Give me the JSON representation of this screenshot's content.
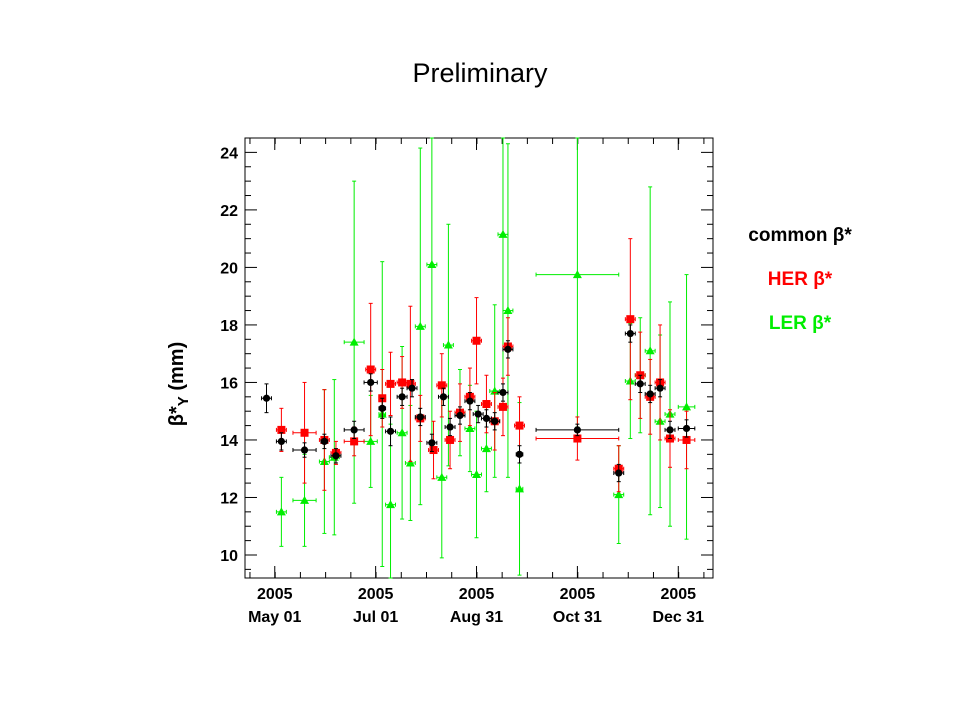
{
  "chart_data": {
    "type": "scatter",
    "title": "Preliminary",
    "ylabel": "β*Y (mm)",
    "ylim": [
      9.2,
      24.5
    ],
    "yticks": [
      10,
      12,
      14,
      16,
      18,
      20,
      22,
      24
    ],
    "x_ticks": [
      {
        "day": 0,
        "year": "2005",
        "date": "May 01"
      },
      {
        "day": 61,
        "year": "2005",
        "date": "Jul 01"
      },
      {
        "day": 122,
        "year": "2005",
        "date": "Aug 31"
      },
      {
        "day": 183,
        "year": "2005",
        "date": "Oct 31"
      },
      {
        "day": 244,
        "year": "2005",
        "date": "Dec 31"
      }
    ],
    "xlim": [
      -18,
      265
    ],
    "legend_position": "right",
    "series": [
      {
        "name": "common β*",
        "color": "#000000",
        "marker": "circle",
        "points": [
          {
            "x": -5,
            "xerr": 3,
            "y": 15.45,
            "yerr": 0.5
          },
          {
            "x": 4,
            "xerr": 3,
            "y": 13.95,
            "yerr": 0.3
          },
          {
            "x": 18,
            "xerr": 7,
            "y": 13.65,
            "yerr": 0.25
          },
          {
            "x": 30,
            "xerr": 2,
            "y": 13.95,
            "yerr": 0.25
          },
          {
            "x": 37,
            "xerr": 3,
            "y": 13.45,
            "yerr": 0.25
          },
          {
            "x": 48,
            "xerr": 6,
            "y": 14.35,
            "yerr": 0.3
          },
          {
            "x": 58,
            "xerr": 4,
            "y": 16.0,
            "yerr": 0.3
          },
          {
            "x": 65,
            "xerr": 2,
            "y": 15.1,
            "yerr": 0.35
          },
          {
            "x": 70,
            "xerr": 3,
            "y": 14.3,
            "yerr": 0.5
          },
          {
            "x": 77,
            "xerr": 3,
            "y": 15.5,
            "yerr": 0.3
          },
          {
            "x": 83,
            "xerr": 3,
            "y": 15.8,
            "yerr": 0.3
          },
          {
            "x": 88,
            "xerr": 3,
            "y": 14.8,
            "yerr": 0.3
          },
          {
            "x": 95,
            "xerr": 3,
            "y": 13.9,
            "yerr": 0.3
          },
          {
            "x": 102,
            "xerr": 3,
            "y": 15.5,
            "yerr": 0.3
          },
          {
            "x": 106,
            "xerr": 3,
            "y": 14.45,
            "yerr": 0.3
          },
          {
            "x": 112,
            "xerr": 3,
            "y": 14.85,
            "yerr": 0.3
          },
          {
            "x": 118,
            "xerr": 3,
            "y": 15.35,
            "yerr": 0.3
          },
          {
            "x": 123,
            "xerr": 3,
            "y": 14.9,
            "yerr": 0.3
          },
          {
            "x": 128,
            "xerr": 3,
            "y": 14.75,
            "yerr": 0.3
          },
          {
            "x": 133,
            "xerr": 3,
            "y": 14.65,
            "yerr": 0.3
          },
          {
            "x": 138,
            "xerr": 3,
            "y": 15.65,
            "yerr": 0.3
          },
          {
            "x": 141,
            "xerr": 3,
            "y": 17.15,
            "yerr": 0.3
          },
          {
            "x": 148,
            "xerr": 2,
            "y": 13.5,
            "yerr": 0.3
          },
          {
            "x": 183,
            "xerr": 25,
            "y": 14.35,
            "yerr": 0.2
          },
          {
            "x": 208,
            "xerr": 3,
            "y": 12.85,
            "yerr": 0.3
          },
          {
            "x": 215,
            "xerr": 3,
            "y": 17.7,
            "yerr": 0.3
          },
          {
            "x": 221,
            "xerr": 3,
            "y": 15.95,
            "yerr": 0.3
          },
          {
            "x": 227,
            "xerr": 3,
            "y": 15.6,
            "yerr": 0.3
          },
          {
            "x": 233,
            "xerr": 3,
            "y": 15.8,
            "yerr": 0.3
          },
          {
            "x": 239,
            "xerr": 3,
            "y": 14.35,
            "yerr": 0.3
          },
          {
            "x": 249,
            "xerr": 5,
            "y": 14.4,
            "yerr": 0.3
          }
        ]
      },
      {
        "name": "HER β*",
        "color": "#ff0000",
        "marker": "square",
        "points": [
          {
            "x": 4,
            "xerr": 3,
            "y": 14.35,
            "yerr": 0.75
          },
          {
            "x": 18,
            "xerr": 7,
            "y": 14.25,
            "yerr": 1.75
          },
          {
            "x": 30,
            "xerr": 3,
            "y": 14.0,
            "yerr": 1.75
          },
          {
            "x": 37,
            "xerr": 3,
            "y": 13.55,
            "yerr": 0.4
          },
          {
            "x": 48,
            "xerr": 6,
            "y": 13.95,
            "yerr": 0.5
          },
          {
            "x": 58,
            "xerr": 3,
            "y": 16.45,
            "yerr": 2.3
          },
          {
            "x": 65,
            "xerr": 2,
            "y": 15.45,
            "yerr": 1.0
          },
          {
            "x": 70,
            "xerr": 3,
            "y": 15.95,
            "yerr": 1.1
          },
          {
            "x": 77,
            "xerr": 3,
            "y": 16.0,
            "yerr": 0.9
          },
          {
            "x": 82,
            "xerr": 3,
            "y": 15.95,
            "yerr": 2.7
          },
          {
            "x": 88,
            "xerr": 3,
            "y": 14.75,
            "yerr": 0.8
          },
          {
            "x": 96,
            "xerr": 3,
            "y": 13.65,
            "yerr": 1.0
          },
          {
            "x": 101,
            "xerr": 3,
            "y": 15.9,
            "yerr": 1.1
          },
          {
            "x": 106,
            "xerr": 3,
            "y": 14.0,
            "yerr": 1.0
          },
          {
            "x": 112,
            "xerr": 3,
            "y": 14.95,
            "yerr": 1.0
          },
          {
            "x": 118,
            "xerr": 3,
            "y": 15.5,
            "yerr": 1.0
          },
          {
            "x": 122,
            "xerr": 3,
            "y": 17.45,
            "yerr": 1.5
          },
          {
            "x": 128,
            "xerr": 3,
            "y": 15.25,
            "yerr": 1.0
          },
          {
            "x": 133,
            "xerr": 3,
            "y": 14.65,
            "yerr": 1.0
          },
          {
            "x": 138,
            "xerr": 3,
            "y": 15.15,
            "yerr": 1.0
          },
          {
            "x": 141,
            "xerr": 3,
            "y": 17.25,
            "yerr": 1.0
          },
          {
            "x": 148,
            "xerr": 3,
            "y": 14.5,
            "yerr": 1.0
          },
          {
            "x": 183,
            "xerr": 25,
            "y": 14.05,
            "yerr": 0.75
          },
          {
            "x": 208,
            "xerr": 3,
            "y": 13.0,
            "yerr": 0.8
          },
          {
            "x": 215,
            "xerr": 3,
            "y": 18.2,
            "yerr": 2.8
          },
          {
            "x": 221,
            "xerr": 3,
            "y": 16.25,
            "yerr": 1.5
          },
          {
            "x": 227,
            "xerr": 3,
            "y": 15.5,
            "yerr": 1.3
          },
          {
            "x": 233,
            "xerr": 3,
            "y": 16.0,
            "yerr": 2.0
          },
          {
            "x": 239,
            "xerr": 3,
            "y": 14.05,
            "yerr": 1.0
          },
          {
            "x": 249,
            "xerr": 5,
            "y": 14.0,
            "yerr": 1.0
          }
        ]
      },
      {
        "name": "LER β*",
        "color": "#00ee00",
        "marker": "triangle",
        "points": [
          {
            "x": 4,
            "xerr": 3,
            "y": 11.5,
            "yerr": 1.2
          },
          {
            "x": 18,
            "xerr": 7,
            "y": 11.9,
            "yerr": 1.6
          },
          {
            "x": 30,
            "xerr": 3,
            "y": 13.25,
            "yerr": 2.5
          },
          {
            "x": 36,
            "xerr": 3,
            "y": 13.4,
            "yerr": 2.7
          },
          {
            "x": 48,
            "xerr": 6,
            "y": 17.4,
            "yerr": 5.6
          },
          {
            "x": 58,
            "xerr": 4,
            "y": 13.95,
            "yerr": 1.6
          },
          {
            "x": 65,
            "xerr": 2,
            "y": 14.9,
            "yerr": 5.3
          },
          {
            "x": 70,
            "xerr": 3,
            "y": 11.75,
            "yerr": 2.8
          },
          {
            "x": 77,
            "xerr": 3,
            "y": 14.25,
            "yerr": 3.0
          },
          {
            "x": 82,
            "xerr": 3,
            "y": 13.2,
            "yerr": 2.0
          },
          {
            "x": 88,
            "xerr": 3,
            "y": 17.95,
            "yerr": 6.2
          },
          {
            "x": 95,
            "xerr": 3,
            "y": 20.1,
            "yerr": 6.2
          },
          {
            "x": 101,
            "xerr": 3,
            "y": 12.7,
            "yerr": 2.8
          },
          {
            "x": 105,
            "xerr": 3,
            "y": 17.3,
            "yerr": 4.2
          },
          {
            "x": 112,
            "xerr": 3,
            "y": 14.95,
            "yerr": 1.5
          },
          {
            "x": 118,
            "xerr": 3,
            "y": 14.4,
            "yerr": 1.5
          },
          {
            "x": 122,
            "xerr": 3,
            "y": 12.8,
            "yerr": 2.2
          },
          {
            "x": 128,
            "xerr": 3,
            "y": 13.7,
            "yerr": 1.5
          },
          {
            "x": 133,
            "xerr": 3,
            "y": 15.7,
            "yerr": 3.0
          },
          {
            "x": 138,
            "xerr": 3,
            "y": 21.15,
            "yerr": 6.0
          },
          {
            "x": 141,
            "xerr": 3,
            "y": 18.5,
            "yerr": 5.8
          },
          {
            "x": 148,
            "xerr": 2,
            "y": 12.3,
            "yerr": 3.0
          },
          {
            "x": 183,
            "xerr": 25,
            "y": 19.75,
            "yerr": 5.3
          },
          {
            "x": 208,
            "xerr": 3,
            "y": 12.1,
            "yerr": 1.7
          },
          {
            "x": 215,
            "xerr": 3,
            "y": 16.05,
            "yerr": 2.0
          },
          {
            "x": 221,
            "xerr": 3,
            "y": 16.25,
            "yerr": 2.0
          },
          {
            "x": 227,
            "xerr": 3,
            "y": 17.1,
            "yerr": 5.7
          },
          {
            "x": 233,
            "xerr": 3,
            "y": 14.65,
            "yerr": 3.0
          },
          {
            "x": 239,
            "xerr": 3,
            "y": 14.9,
            "yerr": 3.9
          },
          {
            "x": 249,
            "xerr": 5,
            "y": 15.15,
            "yerr": 4.6
          }
        ]
      }
    ]
  }
}
